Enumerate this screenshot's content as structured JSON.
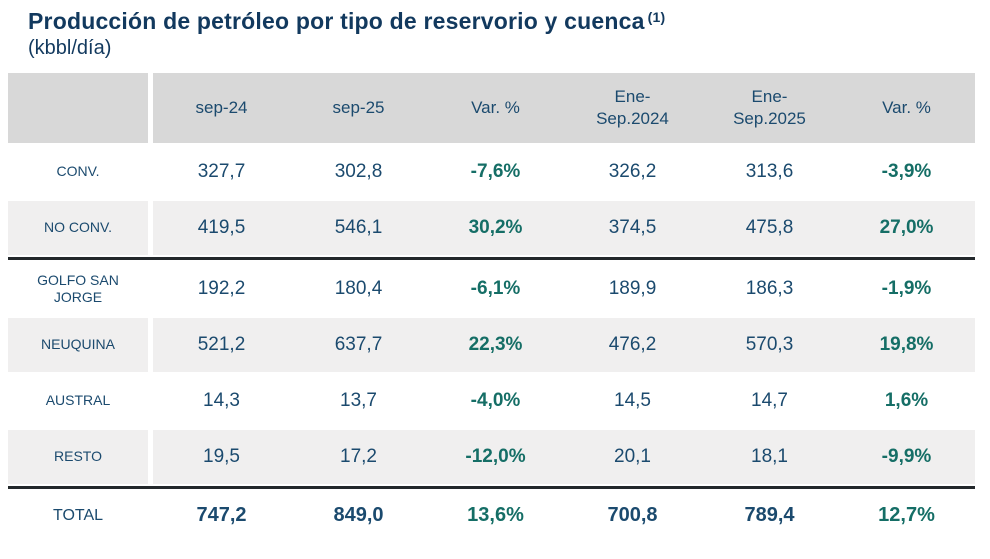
{
  "page": {
    "title": "Producción de petróleo por tipo de reservorio y cuenca",
    "title_superscript": "(1)",
    "subtitle": "(kbbl/día)"
  },
  "table": {
    "columns": [
      "sep-24",
      "sep-25",
      "Var. %",
      "Ene-Sep.2024",
      "Ene-Sep.2025",
      "Var. %"
    ],
    "rows": [
      {
        "label": "CONV.",
        "values": [
          "327,7",
          "302,8",
          "-7,6%",
          "326,2",
          "313,6",
          "-3,9%"
        ]
      },
      {
        "label": "NO CONV.",
        "values": [
          "419,5",
          "546,1",
          "30,2%",
          "374,5",
          "475,8",
          "27,0%"
        ]
      },
      {
        "label": "GOLFO SAN JORGE",
        "values": [
          "192,2",
          "180,4",
          "-6,1%",
          "189,9",
          "186,3",
          "-1,9%"
        ]
      },
      {
        "label": "NEUQUINA",
        "values": [
          "521,2",
          "637,7",
          "22,3%",
          "476,2",
          "570,3",
          "19,8%"
        ]
      },
      {
        "label": "AUSTRAL",
        "values": [
          "14,3",
          "13,7",
          "-4,0%",
          "14,5",
          "14,7",
          "1,6%"
        ]
      },
      {
        "label": "RESTO",
        "values": [
          "19,5",
          "17,2",
          "-12,0%",
          "20,1",
          "18,1",
          "-9,9%"
        ]
      },
      {
        "label": "TOTAL",
        "values": [
          "747,2",
          "849,0",
          "13,6%",
          "700,8",
          "789,4",
          "12,7%"
        ]
      }
    ]
  },
  "colors": {
    "title_navy": "#12395e",
    "cell_navy": "#1b4a6e",
    "variation_teal": "#156e66",
    "header_bg": "#d8d8d8",
    "stripe_bg": "#f0efef",
    "divider": "#23282b"
  },
  "chart_data": {
    "type": "table",
    "title": "Producción de petróleo por tipo de reservorio y cuenca (1)",
    "unit": "kbbl/día",
    "columns": [
      "",
      "sep-24",
      "sep-25",
      "Var. %",
      "Ene-Sep.2024",
      "Ene-Sep.2025",
      "Var. %"
    ],
    "rows": [
      [
        "CONV.",
        327.7,
        302.8,
        "-7,6%",
        326.2,
        313.6,
        "-3,9%"
      ],
      [
        "NO CONV.",
        419.5,
        546.1,
        "30,2%",
        374.5,
        475.8,
        "27,0%"
      ],
      [
        "GOLFO SAN JORGE",
        192.2,
        180.4,
        "-6,1%",
        189.9,
        186.3,
        "-1,9%"
      ],
      [
        "NEUQUINA",
        521.2,
        637.7,
        "22,3%",
        476.2,
        570.3,
        "19,8%"
      ],
      [
        "AUSTRAL",
        14.3,
        13.7,
        "-4,0%",
        14.5,
        14.7,
        "1,6%"
      ],
      [
        "RESTO",
        19.5,
        17.2,
        "-12,0%",
        20.1,
        18.1,
        "-9,9%"
      ],
      [
        "TOTAL",
        747.2,
        849.0,
        "13,6%",
        700.8,
        789.4,
        "12,7%"
      ]
    ]
  }
}
